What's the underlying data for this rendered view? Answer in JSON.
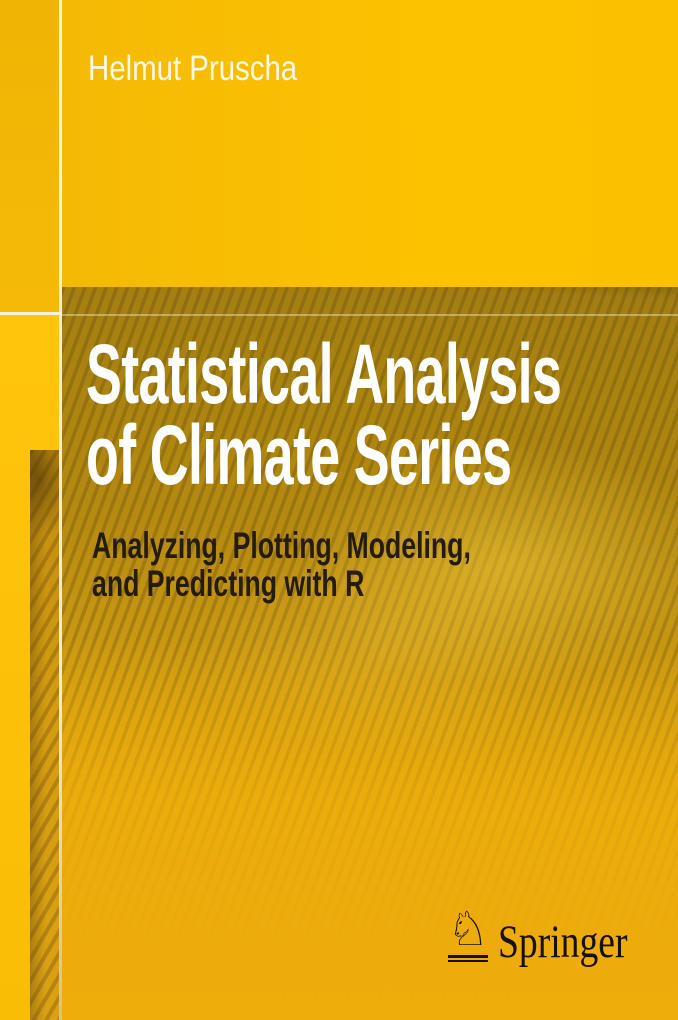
{
  "cover": {
    "author": "Helmut Pruscha",
    "title": {
      "line1": "Statistical Analysis",
      "line2": "of Climate Series"
    },
    "subtitle": {
      "line1": "Analyzing, Plotting, Modeling,",
      "line2": "and Predicting with R"
    },
    "publisher": {
      "name": "Springer",
      "logo_icon": "springer-horse-knight-icon",
      "logo_glyph": "♘"
    }
  },
  "colors": {
    "gold_top": "#fcc200",
    "gold_top_left": "#f3b706",
    "yellow_left": "#ffc40c",
    "gold_bottom": "#eead0b",
    "photo_olive": "#ab8310",
    "photo_stripe_dark": "#8d7013",
    "photo_highlight": "#ffd640",
    "strip": "#d49c12",
    "divider": "#f8f3e0",
    "title_text": "#ffffff",
    "subtitle_text": "#241c0d",
    "author_text": "#fdf8e8",
    "publisher_text": "#161006"
  }
}
